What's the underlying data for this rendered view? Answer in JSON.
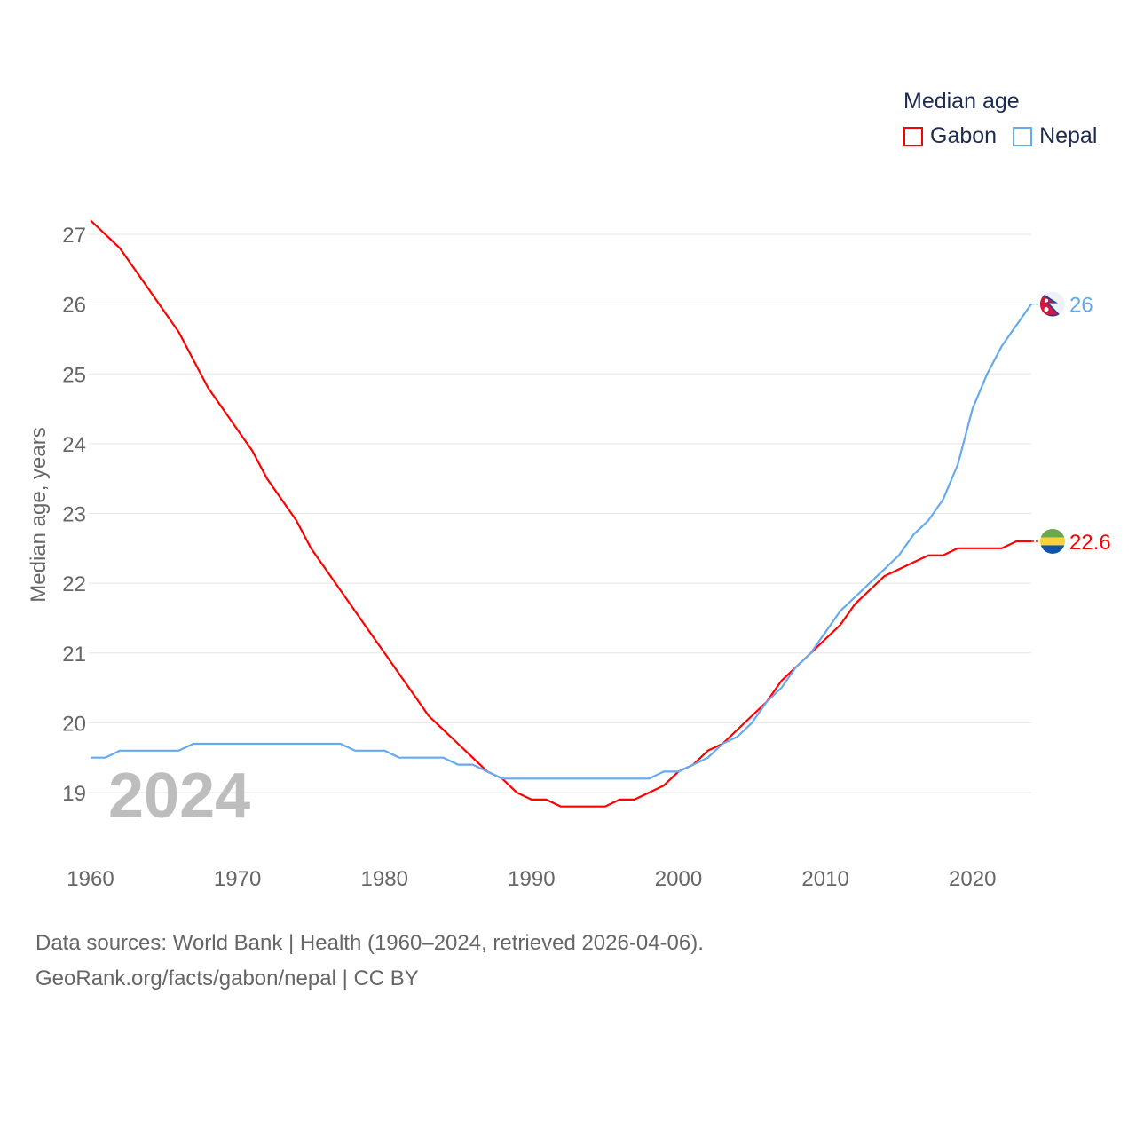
{
  "chart_data": {
    "type": "line",
    "title": "Median age",
    "xlabel": "",
    "ylabel": "Median age, years",
    "xlim": [
      1960,
      2024
    ],
    "ylim": [
      18.2,
      27.5
    ],
    "yticks": [
      19,
      20,
      21,
      22,
      23,
      24,
      25,
      26,
      27
    ],
    "xticks": [
      1960,
      1970,
      1980,
      1990,
      2000,
      2010,
      2020
    ],
    "grid": true,
    "legend_placement": "top-right",
    "watermark_year": "2024",
    "x_start": 1960,
    "series": [
      {
        "name": "Gabon",
        "color": "#ff0000",
        "end_label": "22.6",
        "flag": "gabon-flag",
        "values": [
          27.2,
          27.0,
          26.8,
          26.5,
          26.2,
          25.9,
          25.6,
          25.2,
          24.8,
          24.5,
          24.2,
          23.9,
          23.5,
          23.2,
          22.9,
          22.5,
          22.2,
          21.9,
          21.6,
          21.3,
          21.0,
          20.7,
          20.4,
          20.1,
          19.9,
          19.7,
          19.5,
          19.3,
          19.2,
          19.0,
          18.9,
          18.9,
          18.8,
          18.8,
          18.8,
          18.8,
          18.9,
          18.9,
          19.0,
          19.1,
          19.3,
          19.4,
          19.6,
          19.7,
          19.9,
          20.1,
          20.3,
          20.6,
          20.8,
          21.0,
          21.2,
          21.4,
          21.7,
          21.9,
          22.1,
          22.2,
          22.3,
          22.4,
          22.4,
          22.5,
          22.5,
          22.5,
          22.5,
          22.6,
          22.6
        ]
      },
      {
        "name": "Nepal",
        "color": "#66aaee",
        "end_label": "26",
        "flag": "nepal-flag",
        "values": [
          19.5,
          19.5,
          19.6,
          19.6,
          19.6,
          19.6,
          19.6,
          19.7,
          19.7,
          19.7,
          19.7,
          19.7,
          19.7,
          19.7,
          19.7,
          19.7,
          19.7,
          19.7,
          19.6,
          19.6,
          19.6,
          19.5,
          19.5,
          19.5,
          19.5,
          19.4,
          19.4,
          19.3,
          19.2,
          19.2,
          19.2,
          19.2,
          19.2,
          19.2,
          19.2,
          19.2,
          19.2,
          19.2,
          19.2,
          19.3,
          19.3,
          19.4,
          19.5,
          19.7,
          19.8,
          20.0,
          20.3,
          20.5,
          20.8,
          21.0,
          21.3,
          21.6,
          21.8,
          22.0,
          22.2,
          22.4,
          22.7,
          22.9,
          23.2,
          23.7,
          24.5,
          25.0,
          25.4,
          25.7,
          26.0
        ]
      }
    ]
  },
  "legend": {
    "title": "Median age",
    "items": [
      "Gabon",
      "Nepal"
    ]
  },
  "footer": {
    "line1": "Data sources: World Bank | Health (1960–2024, retrieved 2026-04-06).",
    "line2": "GeoRank.org/facts/gabon/nepal | CC BY"
  }
}
